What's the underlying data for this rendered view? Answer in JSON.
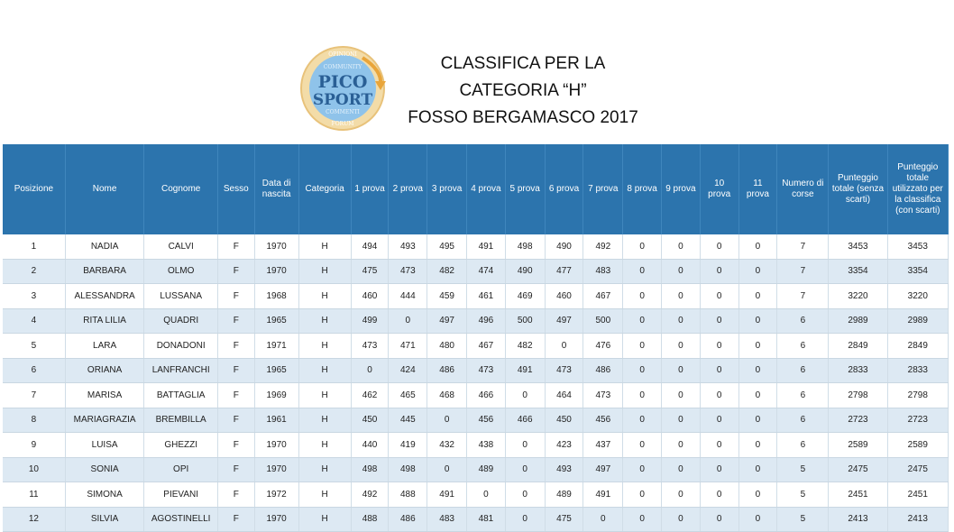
{
  "header": {
    "title_lines": [
      "CLASSIFICA PER LA",
      "CATEGORIA “H”",
      "FOSSO BERGAMASCO 2017"
    ],
    "logo": {
      "text_lines": [
        "PICO",
        "SPORT"
      ],
      "ring_words": [
        "OPINIONI",
        "COMMUNITY",
        "COMMENTI",
        "FORUM"
      ],
      "colors": {
        "ring": "#e8c27a",
        "disc": "#8fc3ea",
        "text": "#2a5f95",
        "arrow": "#e9a53a"
      }
    }
  },
  "table": {
    "columns": [
      "Posizione",
      "Nome",
      "Cognome",
      "Sesso",
      "Data di nascita",
      "Categoria",
      "1 prova",
      "2 prova",
      "3 prova",
      "4 prova",
      "5 prova",
      "6 prova",
      "7 prova",
      "8 prova",
      "9 prova",
      "10 prova",
      "11 prova",
      "Numero di corse",
      "Punteggio totale (senza scarti)",
      "Punteggio totale utilizzato per la classifica (con scarti)"
    ],
    "rows": [
      [
        "1",
        "NADIA",
        "CALVI",
        "F",
        "1970",
        "H",
        "494",
        "493",
        "495",
        "491",
        "498",
        "490",
        "492",
        "0",
        "0",
        "0",
        "0",
        "7",
        "3453",
        "3453"
      ],
      [
        "2",
        "BARBARA",
        "OLMO",
        "F",
        "1970",
        "H",
        "475",
        "473",
        "482",
        "474",
        "490",
        "477",
        "483",
        "0",
        "0",
        "0",
        "0",
        "7",
        "3354",
        "3354"
      ],
      [
        "3",
        "ALESSANDRA",
        "LUSSANA",
        "F",
        "1968",
        "H",
        "460",
        "444",
        "459",
        "461",
        "469",
        "460",
        "467",
        "0",
        "0",
        "0",
        "0",
        "7",
        "3220",
        "3220"
      ],
      [
        "4",
        "RITA LILIA",
        "QUADRI",
        "F",
        "1965",
        "H",
        "499",
        "0",
        "497",
        "496",
        "500",
        "497",
        "500",
        "0",
        "0",
        "0",
        "0",
        "6",
        "2989",
        "2989"
      ],
      [
        "5",
        "LARA",
        "DONADONI",
        "F",
        "1971",
        "H",
        "473",
        "471",
        "480",
        "467",
        "482",
        "0",
        "476",
        "0",
        "0",
        "0",
        "0",
        "6",
        "2849",
        "2849"
      ],
      [
        "6",
        "ORIANA",
        "LANFRANCHI",
        "F",
        "1965",
        "H",
        "0",
        "424",
        "486",
        "473",
        "491",
        "473",
        "486",
        "0",
        "0",
        "0",
        "0",
        "6",
        "2833",
        "2833"
      ],
      [
        "7",
        "MARISA",
        "BATTAGLIA",
        "F",
        "1969",
        "H",
        "462",
        "465",
        "468",
        "466",
        "0",
        "464",
        "473",
        "0",
        "0",
        "0",
        "0",
        "6",
        "2798",
        "2798"
      ],
      [
        "8",
        "MARIAGRAZIA",
        "BREMBILLA",
        "F",
        "1961",
        "H",
        "450",
        "445",
        "0",
        "456",
        "466",
        "450",
        "456",
        "0",
        "0",
        "0",
        "0",
        "6",
        "2723",
        "2723"
      ],
      [
        "9",
        "LUISA",
        "GHEZZI",
        "F",
        "1970",
        "H",
        "440",
        "419",
        "432",
        "438",
        "0",
        "423",
        "437",
        "0",
        "0",
        "0",
        "0",
        "6",
        "2589",
        "2589"
      ],
      [
        "10",
        "SONIA",
        "OPI",
        "F",
        "1970",
        "H",
        "498",
        "498",
        "0",
        "489",
        "0",
        "493",
        "497",
        "0",
        "0",
        "0",
        "0",
        "5",
        "2475",
        "2475"
      ],
      [
        "11",
        "SIMONA",
        "PIEVANI",
        "F",
        "1972",
        "H",
        "492",
        "488",
        "491",
        "0",
        "0",
        "489",
        "491",
        "0",
        "0",
        "0",
        "0",
        "5",
        "2451",
        "2451"
      ],
      [
        "12",
        "SILVIA",
        "AGOSTINELLI",
        "F",
        "1970",
        "H",
        "488",
        "486",
        "483",
        "481",
        "0",
        "475",
        "0",
        "0",
        "0",
        "0",
        "0",
        "5",
        "2413",
        "2413"
      ]
    ]
  }
}
